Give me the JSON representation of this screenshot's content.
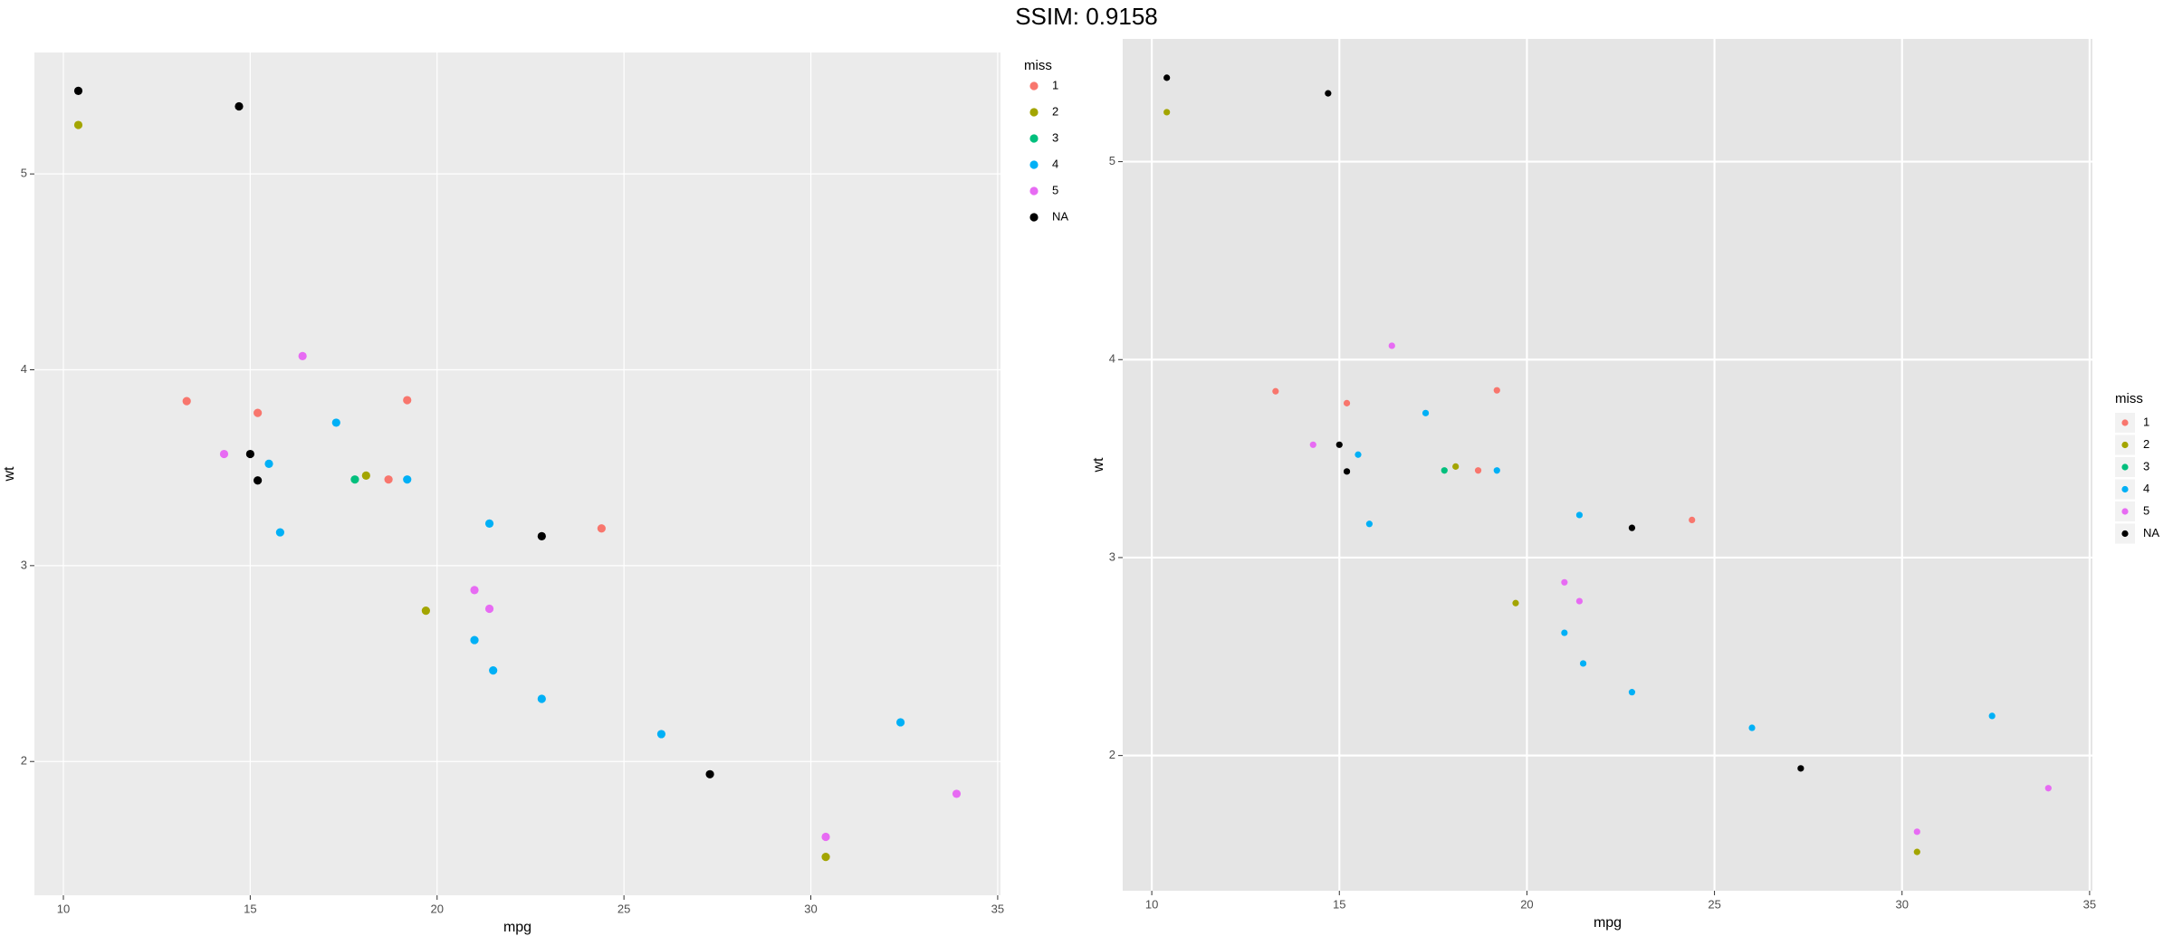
{
  "title": "SSIM: 0.9158",
  "chart_data": [
    {
      "type": "scatter",
      "x_label": "mpg",
      "y_label": "wt",
      "legend_title": "miss",
      "legend": "right",
      "grid": true,
      "xlim": [
        9.225,
        35.075
      ],
      "ylim": [
        1.317,
        5.62
      ],
      "xticks": [
        10,
        15,
        20,
        25,
        30,
        35
      ],
      "yticks": [
        2,
        3,
        4,
        5
      ],
      "series": [
        {
          "name": "1",
          "color": "#F8766D",
          "x": [
            13.3,
            15.2,
            19.2,
            18.7,
            24.4
          ],
          "values": [
            3.84,
            3.78,
            3.845,
            3.44,
            3.19
          ]
        },
        {
          "name": "2",
          "color": "#A3A500",
          "x": [
            10.4,
            18.1,
            19.7,
            30.4
          ],
          "values": [
            5.25,
            3.46,
            2.77,
            1.513
          ]
        },
        {
          "name": "3",
          "color": "#00BF7D",
          "x": [
            17.8
          ],
          "values": [
            3.44
          ]
        },
        {
          "name": "4",
          "color": "#00B0F6",
          "x": [
            15.5,
            17.3,
            19.2,
            15.8,
            21.4,
            21.0,
            21.5,
            22.8,
            26.0,
            32.4
          ],
          "values": [
            3.52,
            3.73,
            3.44,
            3.17,
            3.215,
            2.62,
            2.465,
            2.32,
            2.14,
            2.2
          ]
        },
        {
          "name": "5",
          "color": "#E76BF3",
          "x": [
            16.4,
            14.3,
            21.0,
            21.4,
            33.9,
            30.4
          ],
          "values": [
            4.07,
            3.57,
            2.875,
            2.78,
            1.835,
            1.615
          ]
        },
        {
          "name": "NA",
          "color": "#000000",
          "x": [
            10.4,
            14.7,
            15.0,
            15.2,
            22.8,
            27.3
          ],
          "values": [
            5.424,
            5.345,
            3.57,
            3.435,
            3.15,
            1.935
          ]
        }
      ]
    },
    {
      "type": "scatter",
      "x_label": "mpg",
      "y_label": "wt",
      "legend_title": "miss",
      "legend": "right",
      "grid": true,
      "xlim": [
        9.225,
        35.075
      ],
      "ylim": [
        1.317,
        5.62
      ],
      "xticks": [
        10,
        15,
        20,
        25,
        30,
        35
      ],
      "yticks": [
        2,
        3,
        4,
        5
      ],
      "series": [
        {
          "name": "1",
          "color": "#F8766D",
          "x": [
            13.3,
            15.2,
            19.2,
            18.7,
            24.4
          ],
          "values": [
            3.84,
            3.78,
            3.845,
            3.44,
            3.19
          ]
        },
        {
          "name": "2",
          "color": "#A3A500",
          "x": [
            10.4,
            18.1,
            19.7,
            30.4
          ],
          "values": [
            5.25,
            3.46,
            2.77,
            1.513
          ]
        },
        {
          "name": "3",
          "color": "#00BF7D",
          "x": [
            17.8
          ],
          "values": [
            3.44
          ]
        },
        {
          "name": "4",
          "color": "#00B0F6",
          "x": [
            15.5,
            17.3,
            19.2,
            15.8,
            21.4,
            21.0,
            21.5,
            22.8,
            26.0,
            32.4
          ],
          "values": [
            3.52,
            3.73,
            3.44,
            3.17,
            3.215,
            2.62,
            2.465,
            2.32,
            2.14,
            2.2
          ]
        },
        {
          "name": "5",
          "color": "#E76BF3",
          "x": [
            16.4,
            14.3,
            21.0,
            21.4,
            33.9,
            30.4
          ],
          "values": [
            4.07,
            3.57,
            2.875,
            2.78,
            1.835,
            1.615
          ]
        },
        {
          "name": "NA",
          "color": "#000000",
          "x": [
            10.4,
            14.7,
            15.0,
            15.2,
            22.8,
            27.3
          ],
          "values": [
            5.424,
            5.345,
            3.57,
            3.435,
            3.15,
            1.935
          ]
        }
      ]
    }
  ]
}
